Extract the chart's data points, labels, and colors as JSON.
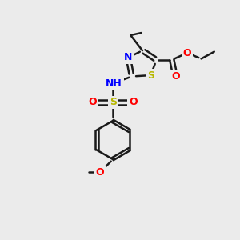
{
  "background_color": "#ebebeb",
  "bond_color": "#1a1a1a",
  "sulfur_color": "#b8b800",
  "nitrogen_color": "#0000ff",
  "oxygen_color": "#ff0000",
  "carbon_color": "#1a1a1a",
  "line_width": 1.8,
  "figsize": [
    3.0,
    3.0
  ],
  "dpi": 100,
  "xlim": [
    0,
    10
  ],
  "ylim": [
    0,
    10
  ]
}
